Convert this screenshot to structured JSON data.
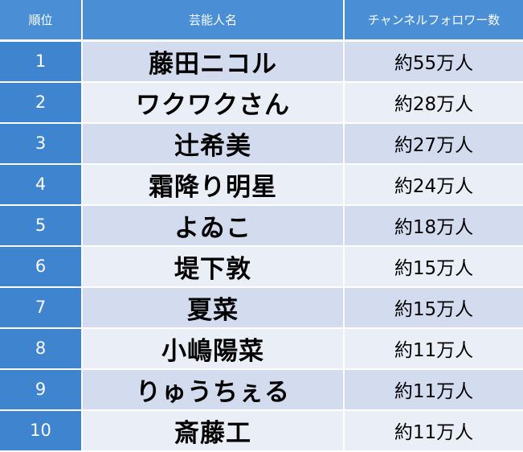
{
  "header": {
    "rank": "順位",
    "name": "芸能人名",
    "followers": "チャンネルフォロワー数"
  },
  "rows": [
    {
      "rank": "1",
      "name": "藤田ニコル",
      "followers": "約55万人"
    },
    {
      "rank": "2",
      "name": "ワクワクさん",
      "followers": "約28万人"
    },
    {
      "rank": "3",
      "name": "辻希美",
      "followers": "約27万人"
    },
    {
      "rank": "4",
      "name": "霜降り明星",
      "followers": "約24万人"
    },
    {
      "rank": "5",
      "name": "よゐこ",
      "followers": "約18万人"
    },
    {
      "rank": "6",
      "name": "堤下敦",
      "followers": "約15万人"
    },
    {
      "rank": "7",
      "name": "夏菜",
      "followers": "約15万人"
    },
    {
      "rank": "8",
      "name": "小嶋陽菜",
      "followers": "約11万人"
    },
    {
      "rank": "9",
      "name": "りゅうちぇる",
      "followers": "約11万人"
    },
    {
      "rank": "10",
      "name": "斎藤工",
      "followers": "約11万人"
    }
  ],
  "colors": {
    "header_bg": "#4a8fd6",
    "rank_bg": "#3f84cf",
    "row_odd_bg": "#d3dcef",
    "row_even_bg": "#eaeef7"
  }
}
